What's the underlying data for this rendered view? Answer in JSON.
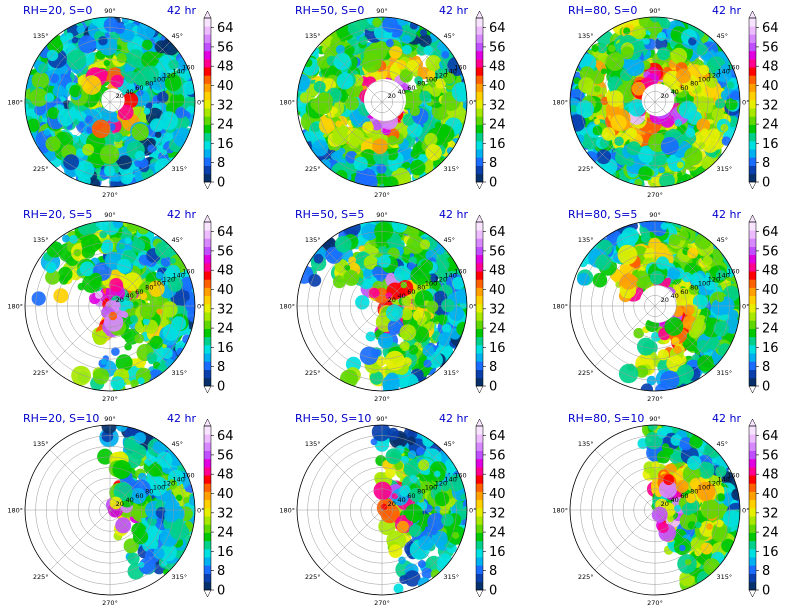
{
  "chart_data": {
    "type": "polar-filled-contour-grid",
    "figure_title": "",
    "forecast_time": "42 hr",
    "angle_ticks": [
      "0°",
      "45°",
      "90°",
      "135°",
      "180°",
      "225°",
      "270°",
      "315°"
    ],
    "radial_ticks": [
      20,
      40,
      60,
      80,
      100,
      120,
      140,
      160
    ],
    "colorbar": {
      "ticks": [
        0,
        8,
        16,
        24,
        32,
        40,
        48,
        56,
        64
      ],
      "range": [
        0,
        68
      ],
      "extend": "both",
      "colors": [
        "#08306b",
        "#0a3fae",
        "#1a6cff",
        "#00b0f0",
        "#00e0e0",
        "#00d08a",
        "#00c800",
        "#5fd800",
        "#a8e800",
        "#e6ef00",
        "#ffd000",
        "#ffa000",
        "#ff6000",
        "#ff0000",
        "#ff0090",
        "#e000e0",
        "#c050ff",
        "#d888ff",
        "#ecbcff",
        "#f8e4ff"
      ]
    },
    "panels": [
      {
        "title": "RH=20, S=0",
        "time": "42 hr",
        "coverage": 0.97,
        "core": 28,
        "vmax": 52,
        "eye": 10
      },
      {
        "title": "RH=50, S=0",
        "time": "42 hr",
        "coverage": 0.96,
        "core": 40,
        "vmax": 60,
        "eye": 18
      },
      {
        "title": "RH=80, S=0",
        "time": "42 hr",
        "coverage": 0.98,
        "core": 42,
        "vmax": 62,
        "eye": 14
      },
      {
        "title": "RH=20, S=5",
        "time": "42 hr",
        "coverage": 0.55,
        "core": 36,
        "vmax": 62,
        "eye": 0
      },
      {
        "title": "RH=50, S=5",
        "time": "42 hr",
        "coverage": 0.62,
        "core": 34,
        "vmax": 60,
        "eye": 0
      },
      {
        "title": "RH=80, S=5",
        "time": "42 hr",
        "coverage": 0.8,
        "core": 40,
        "vmax": 62,
        "eye": 16
      },
      {
        "title": "RH=20, S=10",
        "time": "42 hr",
        "coverage": 0.3,
        "core": 30,
        "vmax": 60,
        "eye": 0
      },
      {
        "title": "RH=50, S=10",
        "time": "42 hr",
        "coverage": 0.4,
        "core": 32,
        "vmax": 56,
        "eye": 0
      },
      {
        "title": "RH=80, S=10",
        "time": "42 hr",
        "coverage": 0.62,
        "core": 40,
        "vmax": 62,
        "eye": 0
      }
    ]
  }
}
